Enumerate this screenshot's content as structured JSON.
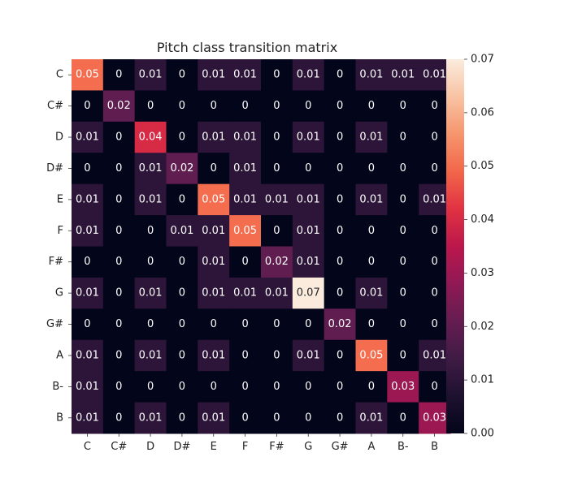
{
  "chart_data": {
    "type": "heatmap",
    "title": "Pitch class transition matrix",
    "xlabel": "",
    "ylabel": "",
    "x_labels": [
      "C",
      "C#",
      "D",
      "D#",
      "E",
      "F",
      "F#",
      "G",
      "G#",
      "A",
      "B-",
      "B"
    ],
    "y_labels": [
      "C",
      "C#",
      "D",
      "D#",
      "E",
      "F",
      "F#",
      "G",
      "G#",
      "A",
      "B-",
      "B"
    ],
    "values": [
      [
        0.05,
        0,
        0.01,
        0,
        0.01,
        0.01,
        0,
        0.01,
        0,
        0.01,
        0.01,
        0.01
      ],
      [
        0,
        0.02,
        0,
        0,
        0,
        0,
        0,
        0,
        0,
        0,
        0,
        0
      ],
      [
        0.01,
        0,
        0.04,
        0,
        0.01,
        0.01,
        0,
        0.01,
        0,
        0.01,
        0,
        0
      ],
      [
        0,
        0,
        0.01,
        0.02,
        0,
        0.01,
        0,
        0,
        0,
        0,
        0,
        0
      ],
      [
        0.01,
        0,
        0.01,
        0,
        0.05,
        0.01,
        0.01,
        0.01,
        0,
        0.01,
        0,
        0.01
      ],
      [
        0.01,
        0,
        0,
        0.01,
        0.01,
        0.05,
        0,
        0.01,
        0,
        0,
        0,
        0
      ],
      [
        0,
        0,
        0,
        0,
        0.01,
        0,
        0.02,
        0.01,
        0,
        0,
        0,
        0
      ],
      [
        0.01,
        0,
        0.01,
        0,
        0.01,
        0.01,
        0.01,
        0.07,
        0,
        0.01,
        0,
        0
      ],
      [
        0,
        0,
        0,
        0,
        0,
        0,
        0,
        0,
        0.02,
        0,
        0,
        0
      ],
      [
        0.01,
        0,
        0.01,
        0,
        0.01,
        0,
        0,
        0.01,
        0,
        0.05,
        0,
        0.01
      ],
      [
        0.01,
        0,
        0,
        0,
        0,
        0,
        0,
        0,
        0,
        0,
        0.03,
        0
      ],
      [
        0.01,
        0,
        0.01,
        0,
        0.01,
        0,
        0,
        0,
        0,
        0.01,
        0,
        0.03
      ]
    ],
    "vmin": 0,
    "vmax": 0.07,
    "colorbar_ticks": [
      "0.00",
      "0.01",
      "0.02",
      "0.03",
      "0.04",
      "0.05",
      "0.06",
      "0.07"
    ],
    "colormap": "rocket",
    "grid": false,
    "legend": "colorbar-right"
  }
}
